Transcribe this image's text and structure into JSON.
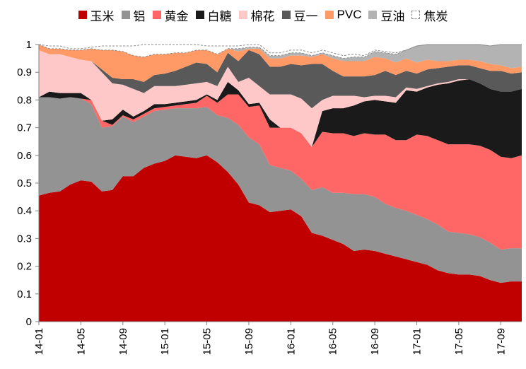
{
  "chart_data": {
    "type": "area",
    "stacked": true,
    "title": "",
    "xlabel": "",
    "ylabel": "",
    "ylim": [
      0,
      1
    ],
    "yticks": [
      "0",
      "0.1",
      "0.2",
      "0.3",
      "0.4",
      "0.5",
      "0.6",
      "0.7",
      "0.8",
      "0.9",
      "1"
    ],
    "xtick_labels": [
      "14-01",
      "14-05",
      "14-09",
      "15-01",
      "15-05",
      "15-09",
      "16-01",
      "16-05",
      "16-09",
      "17-01",
      "17-05",
      "17-09"
    ],
    "x": [
      "14-01",
      "14-02",
      "14-03",
      "14-04",
      "14-05",
      "14-06",
      "14-07",
      "14-08",
      "14-09",
      "14-10",
      "14-11",
      "14-12",
      "15-01",
      "15-02",
      "15-03",
      "15-04",
      "15-05",
      "15-06",
      "15-07",
      "15-08",
      "15-09",
      "15-10",
      "15-11",
      "15-12",
      "16-01",
      "16-02",
      "16-03",
      "16-04",
      "16-05",
      "16-06",
      "16-07",
      "16-08",
      "16-09",
      "16-10",
      "16-11",
      "16-12",
      "17-01",
      "17-02",
      "17-03",
      "17-04",
      "17-05",
      "17-06",
      "17-07",
      "17-08",
      "17-09",
      "17-10",
      "17-11"
    ],
    "legend_position": "top",
    "grid": false,
    "series": [
      {
        "name": "玉米",
        "color": "#c00000",
        "values": [
          0.455,
          0.465,
          0.47,
          0.495,
          0.51,
          0.505,
          0.47,
          0.475,
          0.525,
          0.525,
          0.555,
          0.57,
          0.58,
          0.6,
          0.595,
          0.59,
          0.6,
          0.575,
          0.54,
          0.495,
          0.43,
          0.42,
          0.395,
          0.4,
          0.405,
          0.38,
          0.32,
          0.31,
          0.295,
          0.28,
          0.255,
          0.26,
          0.255,
          0.245,
          0.235,
          0.225,
          0.215,
          0.205,
          0.185,
          0.175,
          0.17,
          0.17,
          0.165,
          0.15,
          0.14,
          0.145,
          0.145
        ]
      },
      {
        "name": "铝",
        "color": "#939393",
        "values": [
          0.355,
          0.345,
          0.335,
          0.315,
          0.295,
          0.28,
          0.23,
          0.23,
          0.215,
          0.195,
          0.185,
          0.19,
          0.185,
          0.17,
          0.175,
          0.18,
          0.175,
          0.17,
          0.195,
          0.215,
          0.235,
          0.22,
          0.17,
          0.155,
          0.14,
          0.135,
          0.155,
          0.175,
          0.17,
          0.185,
          0.205,
          0.2,
          0.195,
          0.18,
          0.175,
          0.175,
          0.17,
          0.165,
          0.165,
          0.15,
          0.15,
          0.145,
          0.14,
          0.135,
          0.12,
          0.12,
          0.12
        ]
      },
      {
        "name": "黄金",
        "color": "#ff6666",
        "values": [
          0,
          0,
          0,
          0,
          0,
          0.015,
          0.025,
          0.005,
          0.005,
          0.01,
          0.01,
          0.01,
          0.01,
          0.01,
          0.015,
          0.02,
          0.04,
          0.045,
          0.085,
          0.11,
          0.11,
          0.14,
          0.135,
          0.145,
          0.155,
          0.165,
          0.155,
          0.2,
          0.215,
          0.215,
          0.21,
          0.22,
          0.225,
          0.25,
          0.245,
          0.255,
          0.29,
          0.3,
          0.305,
          0.315,
          0.32,
          0.325,
          0.33,
          0.335,
          0.335,
          0.325,
          0.335
        ]
      },
      {
        "name": "白糖",
        "color": "#1a1a1a",
        "values": [
          0,
          0.02,
          0.02,
          0.015,
          0.02,
          0,
          0,
          0.02,
          0.02,
          0.01,
          0.01,
          0.015,
          0.01,
          0.01,
          0.01,
          0.01,
          0.005,
          0.01,
          0.045,
          0.015,
          0.01,
          0.01,
          0.03,
          0,
          0,
          0,
          0,
          0.075,
          0.09,
          0.09,
          0.11,
          0.115,
          0.125,
          0.12,
          0.135,
          0.18,
          0.155,
          0.175,
          0.2,
          0.22,
          0.23,
          0.235,
          0.225,
          0.22,
          0.235,
          0.24,
          0.24
        ]
      },
      {
        "name": "棉花",
        "color": "#ffc8c8",
        "values": [
          0.17,
          0.135,
          0.14,
          0.13,
          0.12,
          0.14,
          0.175,
          0.13,
          0.09,
          0.1,
          0.065,
          0.065,
          0.065,
          0.06,
          0.06,
          0.06,
          0.045,
          0.05,
          0.055,
          0.03,
          0.095,
          0.06,
          0.09,
          0.12,
          0.12,
          0.125,
          0.14,
          0.04,
          0.045,
          0.045,
          0.035,
          0.015,
          0.015,
          0.02,
          0.02,
          0.01,
          0.01,
          0.005,
          0.005,
          0.005,
          0.005,
          0,
          0,
          0,
          0,
          0,
          0
        ]
      },
      {
        "name": "豆一",
        "color": "#595959",
        "values": [
          0,
          0,
          0,
          0,
          0,
          0,
          0.01,
          0.02,
          0.02,
          0.035,
          0.04,
          0.04,
          0.045,
          0.055,
          0.065,
          0.075,
          0.065,
          0.05,
          0.05,
          0.075,
          0.1,
          0.115,
          0.1,
          0.1,
          0.11,
          0.12,
          0.16,
          0.13,
          0.09,
          0.07,
          0.07,
          0.075,
          0.075,
          0.09,
          0.08,
          0.06,
          0.055,
          0.06,
          0.055,
          0.055,
          0.05,
          0.05,
          0.055,
          0.065,
          0.075,
          0.065,
          0.06
        ]
      },
      {
        "name": "PVC",
        "color": "#ff9966",
        "values": [
          0.02,
          0.02,
          0.02,
          0.025,
          0.035,
          0.045,
          0.07,
          0.1,
          0.1,
          0.085,
          0.09,
          0.075,
          0.07,
          0.065,
          0.05,
          0.045,
          0.05,
          0.065,
          0.015,
          0.035,
          0.005,
          0.02,
          0.03,
          0.03,
          0.03,
          0.035,
          0.025,
          0.035,
          0.045,
          0.055,
          0.055,
          0.055,
          0.065,
          0.045,
          0.045,
          0.045,
          0.04,
          0.035,
          0.025,
          0.02,
          0.02,
          0.02,
          0.025,
          0.025,
          0.02,
          0.02,
          0.02
        ]
      },
      {
        "name": "豆油",
        "color": "#b3b3b3",
        "values": [
          0,
          0,
          0,
          0,
          0,
          0,
          0,
          0,
          0,
          0,
          0,
          0,
          0,
          0,
          0,
          0,
          0,
          0,
          0,
          0.01,
          0.005,
          0.005,
          0.01,
          0.01,
          0.01,
          0.01,
          0.005,
          0.005,
          0.01,
          0.01,
          0.015,
          0.015,
          0.02,
          0.02,
          0.03,
          0.03,
          0.06,
          0.055,
          0.06,
          0.06,
          0.055,
          0.055,
          0.06,
          0.065,
          0.075,
          0.085,
          0.08
        ]
      },
      {
        "name": "焦炭",
        "color": "#ffffff",
        "values": [
          0,
          0.01,
          0.01,
          0.005,
          0.005,
          0.005,
          0.015,
          0.015,
          0.02,
          0.035,
          0.045,
          0.035,
          0.035,
          0.03,
          0.03,
          0.02,
          0.015,
          0.03,
          0.01,
          0.01,
          0.01,
          0.01,
          0.01,
          0.01,
          0.01,
          0.01,
          0.01,
          0.01,
          0.01,
          0.01,
          0.01,
          0.005,
          0.005,
          0.005,
          0.005,
          0,
          0,
          0,
          0,
          0,
          0,
          0,
          0,
          0,
          0,
          0,
          0
        ]
      }
    ]
  }
}
